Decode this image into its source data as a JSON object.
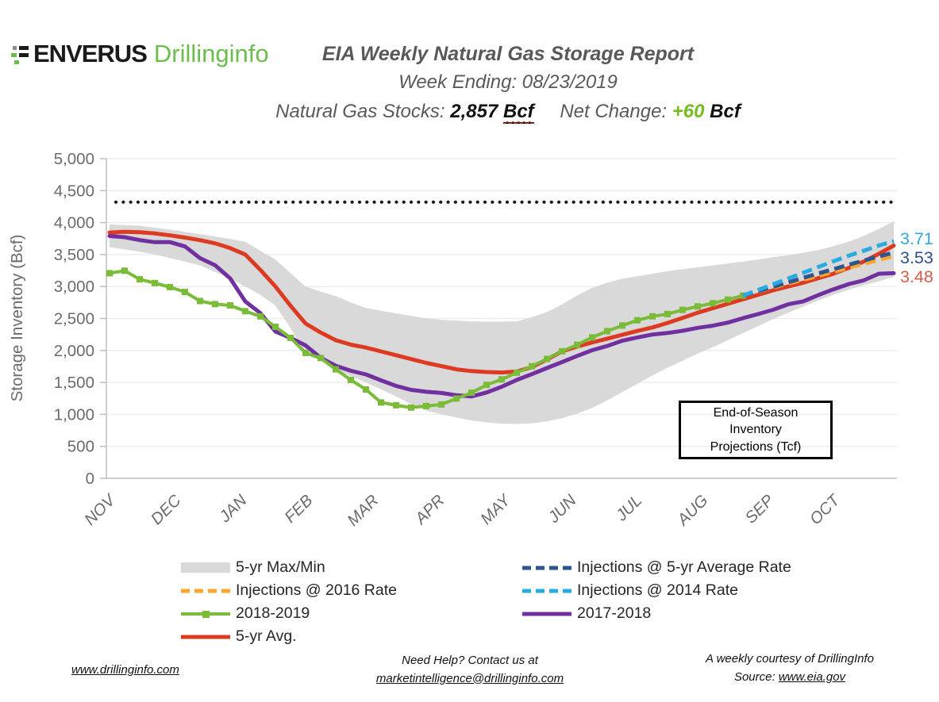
{
  "header": {
    "brand": "ENVERUS",
    "product": "Drillinginfo",
    "title": "EIA Weekly Natural Gas Storage Report",
    "week_ending": "Week Ending: 08/23/2019",
    "stocks_label": "Natural Gas Stocks:",
    "stocks_value": "2,857",
    "stocks_unit": "Bcf",
    "net_change_label": "Net Change:",
    "net_change_value": "+60",
    "net_change_unit": "Bcf",
    "net_change_color": "#76BC21"
  },
  "chart_data": {
    "type": "line",
    "title": "EIA Weekly Natural Gas Storage Report",
    "ylabel": "Storage Inventory (Bcf)",
    "ylim": [
      0,
      5000
    ],
    "ytick_interval": 500,
    "x_months": [
      "NOV",
      "DEC",
      "JAN",
      "FEB",
      "MAR",
      "APR",
      "MAY",
      "JUN",
      "JUL",
      "AUG",
      "SEP",
      "OCT"
    ],
    "weeks_total": 52,
    "grid": true,
    "capacity_dotted_line": 4320,
    "band": {
      "name": "5-yr Max/Min",
      "color": "#D9D9D9",
      "max": [
        3970,
        3960,
        3950,
        3920,
        3890,
        3855,
        3820,
        3780,
        3745,
        3700,
        3560,
        3420,
        3210,
        3000,
        2920,
        2850,
        2750,
        2665,
        2620,
        2580,
        2540,
        2500,
        2480,
        2465,
        2455,
        2450,
        2450,
        2455,
        2520,
        2600,
        2720,
        2860,
        2980,
        3060,
        3120,
        3160,
        3200,
        3240,
        3270,
        3300,
        3330,
        3360,
        3390,
        3420,
        3460,
        3490,
        3530,
        3570,
        3630,
        3700,
        3790,
        3900,
        4020
      ],
      "min": [
        3615,
        3580,
        3545,
        3500,
        3445,
        3390,
        3330,
        3230,
        3120,
        3000,
        2870,
        2700,
        2350,
        1960,
        1830,
        1700,
        1600,
        1500,
        1390,
        1280,
        1160,
        1060,
        1000,
        950,
        905,
        875,
        855,
        850,
        860,
        890,
        940,
        1010,
        1100,
        1220,
        1350,
        1480,
        1610,
        1730,
        1840,
        1950,
        2050,
        2160,
        2270,
        2380,
        2490,
        2590,
        2690,
        2780,
        2870,
        2950,
        3020,
        3080,
        3150
      ]
    },
    "series": [
      {
        "name": "5-yr Avg.",
        "color": "#DE3A21",
        "style": "solid",
        "width": 5,
        "start_week": 0,
        "values": [
          3845,
          3855,
          3850,
          3830,
          3800,
          3765,
          3725,
          3675,
          3600,
          3500,
          3260,
          3000,
          2700,
          2420,
          2280,
          2160,
          2090,
          2045,
          1985,
          1925,
          1865,
          1805,
          1755,
          1705,
          1678,
          1662,
          1655,
          1670,
          1740,
          1860,
          1985,
          2060,
          2125,
          2185,
          2245,
          2305,
          2360,
          2430,
          2510,
          2590,
          2660,
          2730,
          2800,
          2870,
          2940,
          3000,
          3060,
          3130,
          3200,
          3290,
          3390,
          3510,
          3640
        ]
      },
      {
        "name": "2017-2018",
        "color": "#7030A0",
        "style": "solid",
        "width": 5,
        "start_week": 0,
        "values": [
          3790,
          3772,
          3726,
          3693,
          3695,
          3626,
          3444,
          3332,
          3126,
          2767,
          2584,
          2296,
          2197,
          2078,
          1884,
          1760,
          1682,
          1625,
          1532,
          1446,
          1383,
          1354,
          1335,
          1299,
          1281,
          1343,
          1432,
          1538,
          1629,
          1725,
          1817,
          1913,
          2004,
          2070,
          2152,
          2203,
          2249,
          2273,
          2308,
          2354,
          2387,
          2435,
          2505,
          2568,
          2636,
          2722,
          2768,
          2866,
          2956,
          3037,
          3095,
          3200,
          3208
        ]
      },
      {
        "name": "2018-2019",
        "color": "#7ABB38",
        "style": "solid-marker",
        "width": 4,
        "start_week": 0,
        "values": [
          3208,
          3247,
          3113,
          3054,
          2991,
          2914,
          2773,
          2725,
          2705,
          2614,
          2533,
          2370,
          2197,
          1960,
          1882,
          1705,
          1539,
          1390,
          1186,
          1143,
          1107,
          1130,
          1155,
          1247,
          1339,
          1462,
          1547,
          1653,
          1753,
          1867,
          1986,
          2088,
          2203,
          2301,
          2390,
          2471,
          2533,
          2569,
          2634,
          2689,
          2738,
          2797,
          2857
        ]
      }
    ],
    "projections": [
      {
        "name": "Injections @ 2016 Rate",
        "color": "#FBA62C",
        "style": "dashed",
        "width": 5,
        "start_week": 42,
        "values": [
          2857,
          2920,
          2985,
          3045,
          3105,
          3165,
          3230,
          3290,
          3355,
          3415,
          3480
        ],
        "end_label": "3.48",
        "end_label_color": "#D95C4A"
      },
      {
        "name": "Injections @ 5-yr Average Rate",
        "color": "#2E5590",
        "style": "dashed",
        "width": 5,
        "start_week": 42,
        "values": [
          2857,
          2925,
          2995,
          3065,
          3135,
          3205,
          3270,
          3340,
          3405,
          3470,
          3530
        ],
        "end_label": "3.53",
        "end_label_color": "#2E4E87"
      },
      {
        "name": "Injections @ 2014 Rate",
        "color": "#29ABE2",
        "style": "dashed",
        "width": 5,
        "start_week": 42,
        "values": [
          2857,
          2945,
          3035,
          3125,
          3215,
          3305,
          3395,
          3480,
          3560,
          3640,
          3710
        ],
        "end_label": "3.71",
        "end_label_color": "#2FA8DC"
      }
    ]
  },
  "annotation_box": {
    "line1": "End-of-Season",
    "line2": "Inventory",
    "line3": "Projections (Tcf)"
  },
  "legend": {
    "col1": [
      {
        "label": "5-yr Max/Min",
        "swatch": "band",
        "color": "#D9D9D9"
      },
      {
        "label": "Injections @ 2016 Rate",
        "swatch": "dashed",
        "color": "#FBA62C"
      },
      {
        "label": "2018-2019",
        "swatch": "solid-marker",
        "color": "#7ABB38"
      },
      {
        "label": "5-yr Avg.",
        "swatch": "solid",
        "color": "#DE3A21"
      }
    ],
    "col2": [
      {
        "label": "Injections @ 5-yr Average Rate",
        "swatch": "dashed",
        "color": "#2E5590"
      },
      {
        "label": "Injections @ 2014 Rate",
        "swatch": "dashed",
        "color": "#29ABE2"
      },
      {
        "label": "2017-2018",
        "swatch": "solid",
        "color": "#7030A0"
      }
    ]
  },
  "footer": {
    "left_link": "www.drillinginfo.com",
    "center_line1": "Need Help? Contact us at",
    "center_link": "marketintelligence@drillinginfo.com",
    "right_line1": "A weekly courtesy of DrillingInfo",
    "right_source_label": "Source: ",
    "right_link": "www.eia.gov"
  }
}
